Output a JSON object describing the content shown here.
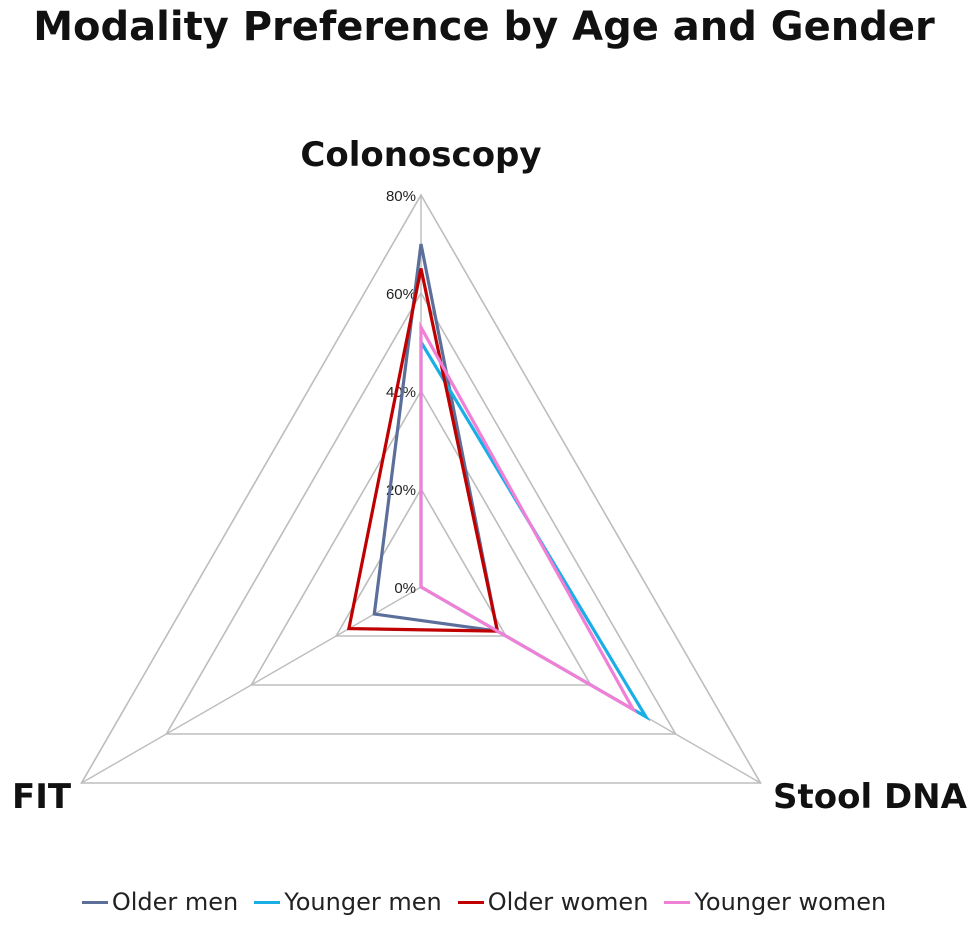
{
  "chart_data": {
    "type": "radar",
    "title": "Modality Preference by Age and Gender",
    "axes": [
      "Colonoscopy",
      "Stool DNA",
      "FIT"
    ],
    "tick_labels": [
      "0%",
      "20%",
      "40%",
      "60%",
      "80%"
    ],
    "ticks": [
      0,
      20,
      40,
      60,
      80
    ],
    "range": [
      0,
      80
    ],
    "grid": true,
    "legend_position": "bottom",
    "series": [
      {
        "name": "Older men",
        "color": "#5b6f9a",
        "values": [
          70,
          18,
          11
        ]
      },
      {
        "name": "Younger men",
        "color": "#1aaee6",
        "values": [
          50,
          53,
          0
        ]
      },
      {
        "name": "Older women",
        "color": "#c00000",
        "values": [
          65,
          18,
          17
        ]
      },
      {
        "name": "Younger women",
        "color": "#f07fd6",
        "values": [
          53,
          50,
          0
        ]
      }
    ]
  }
}
